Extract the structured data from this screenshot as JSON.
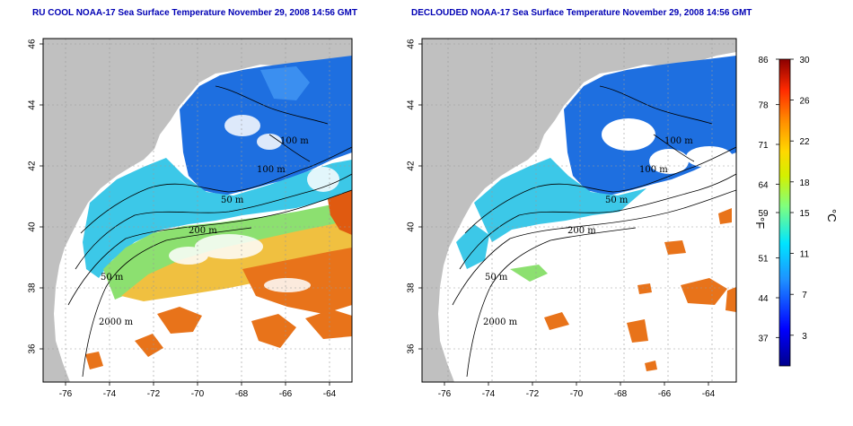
{
  "panels": [
    {
      "title": "RU COOL NOAA-17 Sea Surface Temperature November 29, 2008 14:56 GMT",
      "x_ticks": [
        "-76",
        "-74",
        "-72",
        "-70",
        "-68",
        "-66",
        "-64"
      ],
      "y_ticks": [
        "46",
        "44",
        "42",
        "40",
        "38",
        "36"
      ],
      "contour_labels": [
        "100 m",
        "100 m",
        "50 m",
        "200 m",
        "50 m",
        "2000 m"
      ]
    },
    {
      "title": "DECLOUDED NOAA-17 Sea Surface Temperature November 29, 2008 14:56 GMT",
      "x_ticks": [
        "-76",
        "-74",
        "-72",
        "-70",
        "-68",
        "-66",
        "-64"
      ],
      "y_ticks": [
        "46",
        "44",
        "42",
        "40",
        "38",
        "36"
      ],
      "contour_labels": [
        "100 m",
        "100 m",
        "50 m",
        "200 m",
        "50 m",
        "2000 m"
      ]
    }
  ],
  "colorbar": {
    "fahrenheit_ticks": [
      "86",
      "78",
      "71",
      "64",
      "59",
      "51",
      "44",
      "37"
    ],
    "celsius_ticks": [
      "30",
      "26",
      "22",
      "18",
      "15",
      "11",
      "7",
      "3"
    ],
    "fahrenheit_unit": "°F",
    "celsius_unit": "°C",
    "range_c": [
      0,
      30
    ]
  },
  "colors": {
    "land": "#c0c0c0",
    "title": "#0000b4",
    "cold": "#1e6fe0",
    "cool": "#3cc8e8",
    "mild": "#8ce070",
    "warm": "#f0c040",
    "hot": "#e05a10"
  }
}
